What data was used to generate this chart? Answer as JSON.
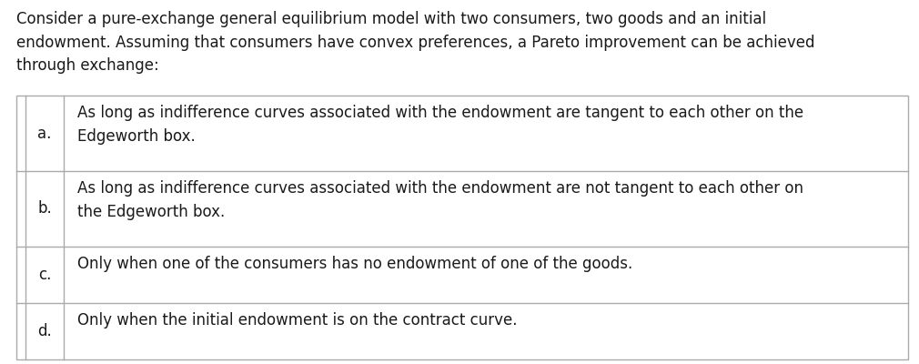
{
  "title_text": "Consider a pure-exchange general equilibrium model with two consumers, two goods and an initial\nendowment. Assuming that consumers have convex preferences, a Pareto improvement can be achieved\nthrough exchange:",
  "options": [
    {
      "label": "a.",
      "text": "As long as indifference curves associated with the endowment are tangent to each other on the\nEdgeworth box."
    },
    {
      "label": "b.",
      "text": "As long as indifference curves associated with the endowment are not tangent to each other on\nthe Edgeworth box."
    },
    {
      "label": "c.",
      "text": "Only when one of the consumers has no endowment of one of the goods."
    },
    {
      "label": "d.",
      "text": "Only when the initial endowment is on the contract curve."
    }
  ],
  "background_color": "#ffffff",
  "text_color": "#1a1a1a",
  "border_color": "#aaaaaa",
  "title_fontsize": 12.0,
  "option_fontsize": 12.0,
  "label_fontsize": 12.0,
  "fig_width": 10.1,
  "fig_height": 4.0,
  "dpi": 100
}
